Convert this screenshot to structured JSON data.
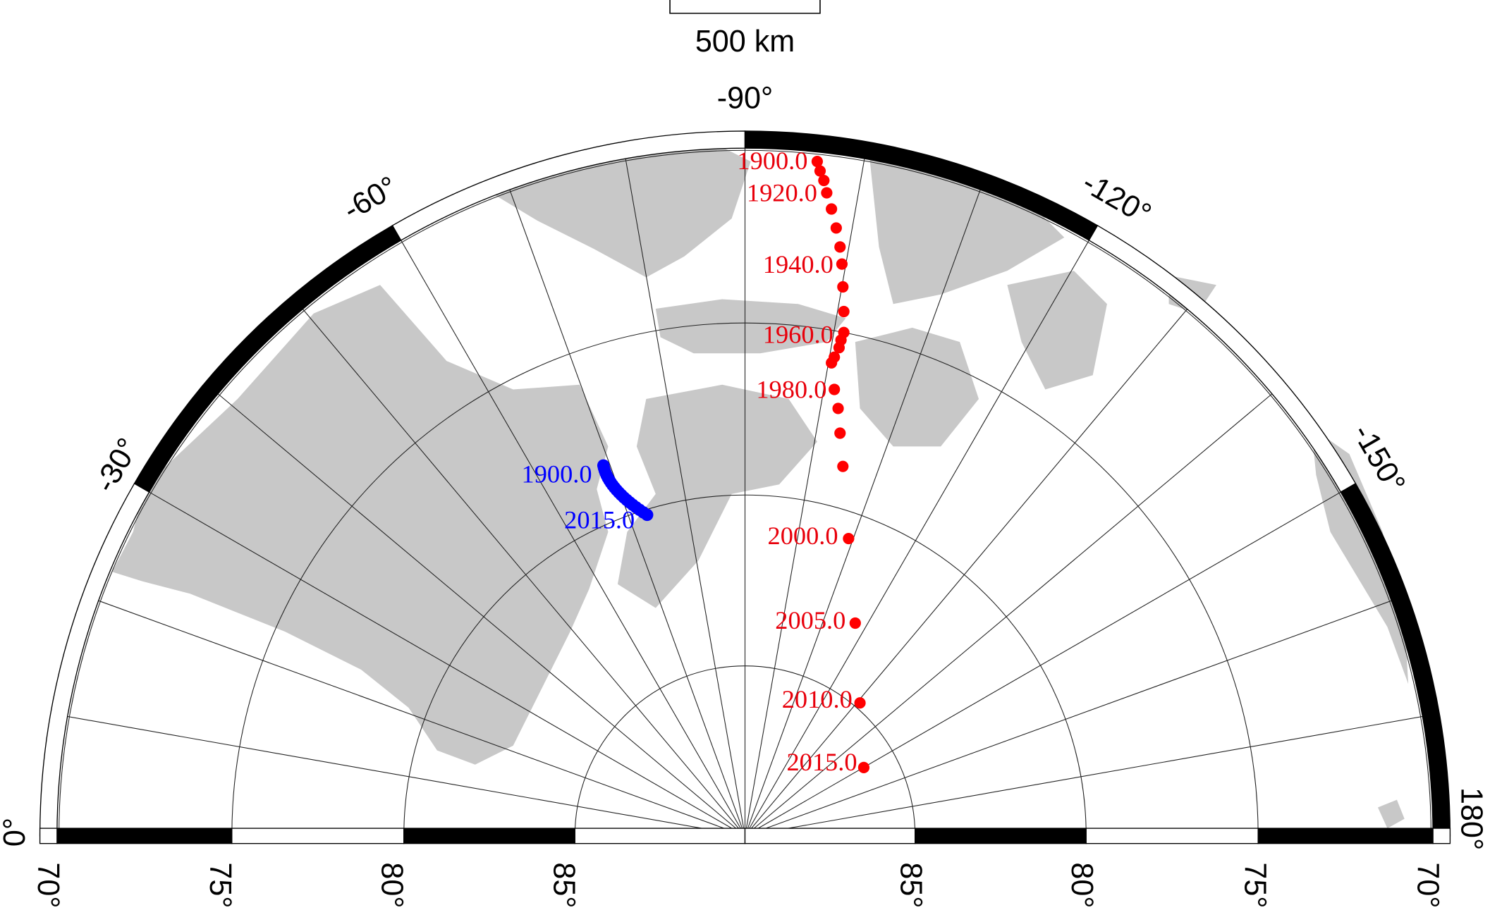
{
  "scale_bar": {
    "label": "500 km"
  },
  "longitude_labels": [
    "-90°",
    "-60°",
    "-120°",
    "-30°",
    "-150°",
    "0°",
    "180°"
  ],
  "latitude_labels_left": [
    "70°",
    "75°",
    "80°",
    "85°"
  ],
  "latitude_labels_right": [
    "85°",
    "80°",
    "75°",
    "70°"
  ],
  "red_labels": [
    "1900.0",
    "1920.0",
    "1940.0",
    "1960.0",
    "1980.0",
    "2000.0",
    "2005.0",
    "2010.0",
    "2015.0"
  ],
  "blue_labels": [
    "1900.0",
    "2015.0"
  ]
}
